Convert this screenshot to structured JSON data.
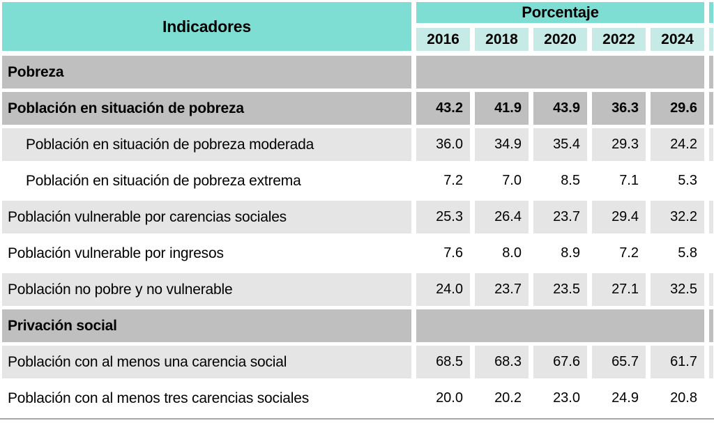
{
  "table": {
    "header": {
      "indicators": "Indicadores",
      "group": "Porcentaje",
      "years": [
        "2016",
        "2018",
        "2020",
        "2022",
        "2024"
      ]
    },
    "rows": [
      {
        "type": "section",
        "label": "Pobreza"
      },
      {
        "type": "data",
        "bold": true,
        "label": "Población en situación de pobreza",
        "values": [
          "43.2",
          "41.9",
          "43.9",
          "36.3",
          "29.6"
        ]
      },
      {
        "type": "data",
        "indent": true,
        "label": "Población en situación de pobreza moderada",
        "values": [
          "36.0",
          "34.9",
          "35.4",
          "29.3",
          "24.2"
        ]
      },
      {
        "type": "data",
        "indent": true,
        "label": "Población en situación de pobreza extrema",
        "values": [
          "7.2",
          "7.0",
          "8.5",
          "7.1",
          "5.3"
        ]
      },
      {
        "type": "data",
        "label": "Población vulnerable por carencias sociales",
        "values": [
          "25.3",
          "26.4",
          "23.7",
          "29.4",
          "32.2"
        ]
      },
      {
        "type": "data",
        "label": "Población vulnerable por ingresos",
        "values": [
          "7.6",
          "8.0",
          "8.9",
          "7.2",
          "5.8"
        ]
      },
      {
        "type": "data",
        "label": "Población no pobre y no vulnerable",
        "values": [
          "24.0",
          "23.7",
          "23.5",
          "27.1",
          "32.5"
        ]
      },
      {
        "type": "section",
        "label": "Privación social"
      },
      {
        "type": "data",
        "label": "Población con al menos una carencia social",
        "values": [
          "68.5",
          "68.3",
          "67.6",
          "65.7",
          "61.7"
        ]
      },
      {
        "type": "data",
        "label": "Población con al menos tres carencias sociales",
        "values": [
          "20.0",
          "20.2",
          "23.0",
          "24.9",
          "20.8"
        ]
      }
    ]
  },
  "colors": {
    "header_teal": "#7EDED4",
    "year_cell_teal": "#C6EBE6",
    "section_gray": "#BFBFBF",
    "row_light_gray": "#E5E5E5",
    "row_white": "#FFFFFF",
    "separator_gray": "#A8A8A8"
  },
  "chart_data": {
    "type": "table",
    "title": "",
    "column_group_label": "Porcentaje",
    "columns": [
      "Indicadores",
      "2016",
      "2018",
      "2020",
      "2022",
      "2024"
    ],
    "sections": [
      {
        "name": "Pobreza",
        "rows": [
          {
            "label": "Población en situación de pobreza",
            "values": [
              43.2,
              41.9,
              43.9,
              36.3,
              29.6
            ]
          },
          {
            "label": "Población en situación de pobreza moderada",
            "values": [
              36.0,
              34.9,
              35.4,
              29.3,
              24.2
            ]
          },
          {
            "label": "Población en situación de pobreza extrema",
            "values": [
              7.2,
              7.0,
              8.5,
              7.1,
              5.3
            ]
          },
          {
            "label": "Población vulnerable por carencias sociales",
            "values": [
              25.3,
              26.4,
              23.7,
              29.4,
              32.2
            ]
          },
          {
            "label": "Población vulnerable por ingresos",
            "values": [
              7.6,
              8.0,
              8.9,
              7.2,
              5.8
            ]
          },
          {
            "label": "Población no pobre y no vulnerable",
            "values": [
              24.0,
              23.7,
              23.5,
              27.1,
              32.5
            ]
          }
        ]
      },
      {
        "name": "Privación social",
        "rows": [
          {
            "label": "Población con al menos una carencia social",
            "values": [
              68.5,
              68.3,
              67.6,
              65.7,
              61.7
            ]
          },
          {
            "label": "Población con al menos tres carencias sociales",
            "values": [
              20.0,
              20.2,
              23.0,
              24.9,
              20.8
            ]
          }
        ]
      }
    ],
    "units": "percent"
  }
}
